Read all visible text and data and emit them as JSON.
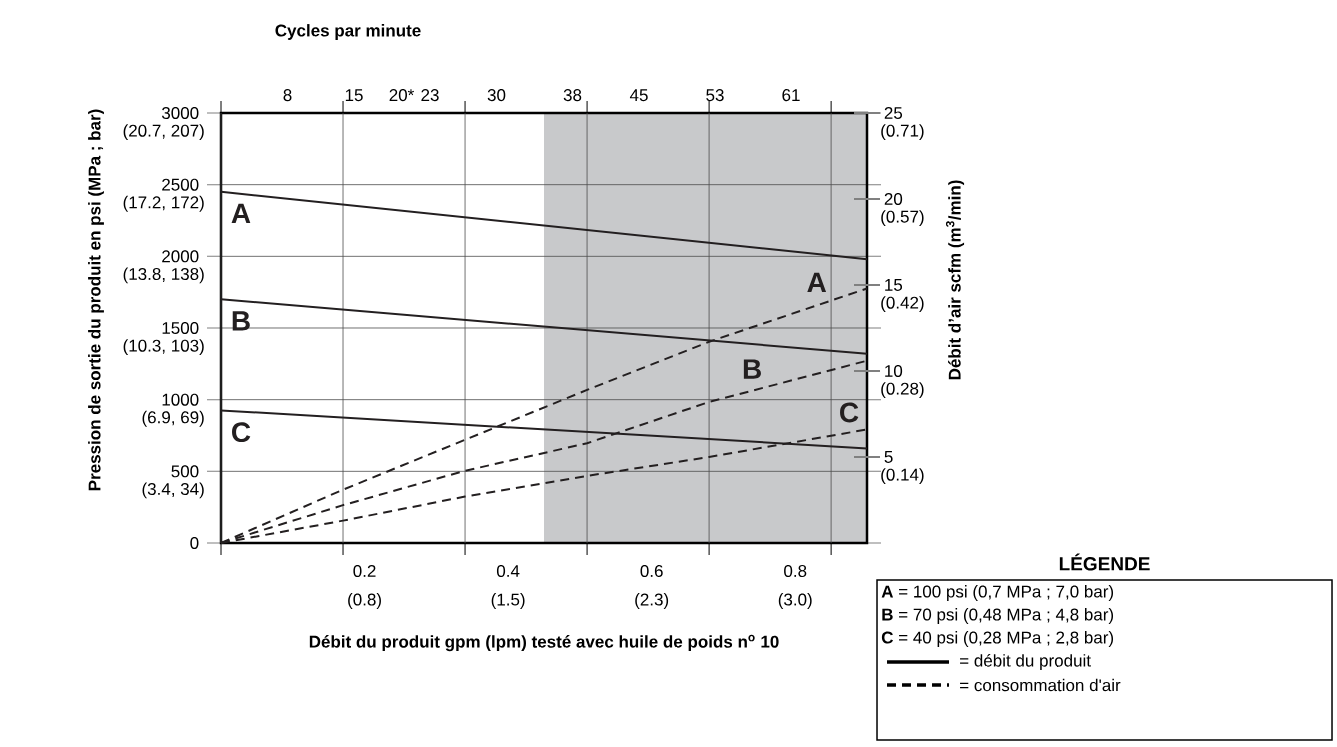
{
  "chart_data": {
    "type": "line",
    "x2label": "Cycles par minute",
    "xlabel": "Débit du produit gpm (lpm) testé avec huile de poids n$^{o}$ 10",
    "ylabel": "Pression de sortie du produit en psi (MPa ; bar)",
    "y2label": "Débit d’air scfm (m$^{3}$/min)",
    "legend_title": "LÉGENDE",
    "grid": true,
    "line_style": "solid",
    "xlim": [
      0,
      0.9
    ],
    "xticks": [
      {
        "value": 0,
        "label": null
      },
      {
        "value": 0.17,
        "label": null
      },
      {
        "value": 0.34,
        "label": null
      },
      {
        "value": 0.51,
        "label": null
      },
      {
        "value": 0.68,
        "label": null
      },
      {
        "value": 0.85,
        "label": null
      },
      0.2,
      0.4,
      0.6,
      0.8
    ],
    "x2lim": [
      1,
      69
    ],
    "x2ticks": [
      8,
      15,
      {
        "value": 20,
        "label": "20*"
      },
      23,
      30,
      38,
      45,
      53,
      61
    ],
    "ylim": [
      0,
      3000
    ],
    "yticks": [
      0,
      500,
      1000,
      1500,
      2000,
      2500,
      3000
    ],
    "y2lim": [
      0,
      25
    ],
    "y2ticks": [
      5,
      10,
      15,
      20,
      25
    ],
    "bands": [
      {
        "axis": "x",
        "from": 0.45,
        "to": 0.9,
        "color": "#c8c9cb"
      }
    ],
    "series": [
      {
        "name": "A",
        "color": "#231f20",
        "x": [
          0,
          0.9
        ],
        "values": [
          2450,
          1980
        ]
      },
      {
        "name": "B",
        "color": "#231f20",
        "x": [
          0,
          0.9
        ],
        "values": [
          1700,
          1320
        ]
      },
      {
        "name": "C",
        "color": "#231f20",
        "x": [
          0,
          0.9
        ],
        "values": [
          925,
          660
        ]
      },
      {
        "name": "A",
        "color": "#231f20",
        "axis": "y2",
        "line_style": "dashed",
        "x": [
          0,
          0.17,
          0.34,
          0.51,
          0.68,
          0.9
        ],
        "values": [
          0,
          3.1,
          6.0,
          8.9,
          11.7,
          14.8
        ]
      },
      {
        "name": "B",
        "color": "#231f20",
        "axis": "y2",
        "line_style": "dashed",
        "x": [
          0,
          0.17,
          0.34,
          0.51,
          0.68,
          0.9
        ],
        "values": [
          0,
          2.2,
          4.2,
          5.8,
          8.2,
          10.6
        ]
      },
      {
        "name": "C",
        "color": "#231f20",
        "axis": "y2",
        "line_style": "dashed",
        "x": [
          0,
          0.17,
          0.34,
          0.51,
          0.68,
          0.9
        ],
        "values": [
          0,
          1.3,
          2.7,
          3.9,
          5.0,
          6.6
        ]
      }
    ],
    "annotations": [
      "(0.8)",
      "(1.5)",
      "(2.3)",
      "(3.0)",
      "(3.4, 34)",
      "(6.9, 69)",
      "(10.3, 103)",
      "(13.8, 138)",
      "(17.2, 172)",
      "(20.7, 207)",
      "(0.14)",
      "(0.28)",
      "(0.42)",
      "(0.57)",
      "(0.71)",
      "**A** = 100 psi (0,7 MPa ; 7,0 bar)",
      "**B** = 70 psi (0,48 MPa ; 4,8 bar)",
      "**C** = 40 psi (0,28 MPa ; 2,8 bar)",
      "= débit du produit",
      "= consommation d'air"
    ]
  }
}
